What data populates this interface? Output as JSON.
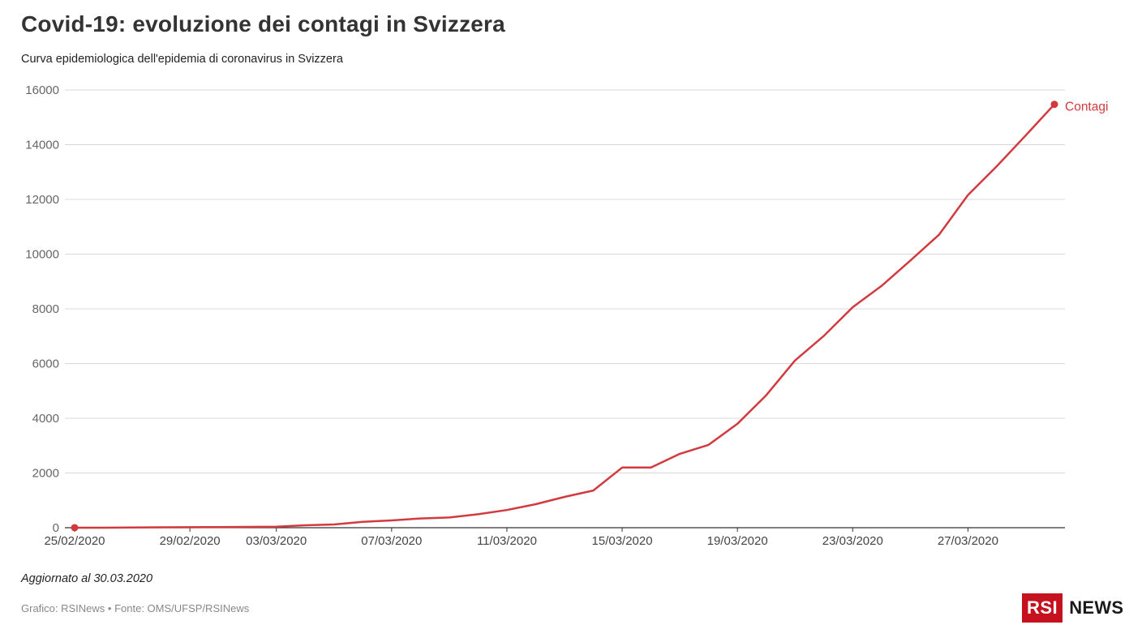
{
  "header": {
    "title": "Covid-19: evoluzione dei contagi in Svizzera",
    "subtitle": "Curva epidemiologica dell'epidemia di coronavirus in Svizzera"
  },
  "footer": {
    "note": "Aggiornato al 30.03.2020",
    "source": "Grafico: RSINews • Fonte: OMS/UFSP/RSINews",
    "logo_left": "RSI",
    "logo_right": "NEWS"
  },
  "colors": {
    "series": "#d13a3f",
    "grid": "#d8d8d8",
    "axis": "#333333",
    "tick_text": "#666666",
    "logo_red": "#c5121e"
  },
  "chart_data": {
    "type": "line",
    "title": "Covid-19: evoluzione dei contagi in Svizzera",
    "subtitle": "Curva epidemiologica dell'epidemia di coronavirus in Svizzera",
    "xlabel": "",
    "ylabel": "",
    "ylim": [
      0,
      16000
    ],
    "yticks": [
      0,
      2000,
      4000,
      6000,
      8000,
      10000,
      12000,
      14000,
      16000
    ],
    "xticks": [
      "25/02/2020",
      "29/02/2020",
      "03/03/2020",
      "07/03/2020",
      "11/03/2020",
      "15/03/2020",
      "19/03/2020",
      "23/03/2020",
      "27/03/2020"
    ],
    "grid": true,
    "legend": "end-of-line label",
    "x": [
      "25/02/2020",
      "26/02/2020",
      "27/02/2020",
      "28/02/2020",
      "29/02/2020",
      "01/03/2020",
      "02/03/2020",
      "03/03/2020",
      "04/03/2020",
      "05/03/2020",
      "06/03/2020",
      "07/03/2020",
      "08/03/2020",
      "09/03/2020",
      "10/03/2020",
      "11/03/2020",
      "12/03/2020",
      "13/03/2020",
      "14/03/2020",
      "15/03/2020",
      "16/03/2020",
      "17/03/2020",
      "18/03/2020",
      "19/03/2020",
      "20/03/2020",
      "21/03/2020",
      "22/03/2020",
      "23/03/2020",
      "24/03/2020",
      "25/03/2020",
      "26/03/2020",
      "27/03/2020",
      "28/03/2020",
      "29/03/2020",
      "30/03/2020"
    ],
    "series": [
      {
        "name": "Contagi",
        "values": [
          1,
          1,
          8,
          15,
          18,
          24,
          30,
          37,
          90,
          120,
          214,
          268,
          337,
          374,
          491,
          645,
          858,
          1125,
          1359,
          2200,
          2200,
          2700,
          3028,
          3800,
          4840,
          6113,
          7014,
          8060,
          8836,
          9765,
          10714,
          12161,
          13213,
          14336,
          15475
        ]
      }
    ]
  }
}
